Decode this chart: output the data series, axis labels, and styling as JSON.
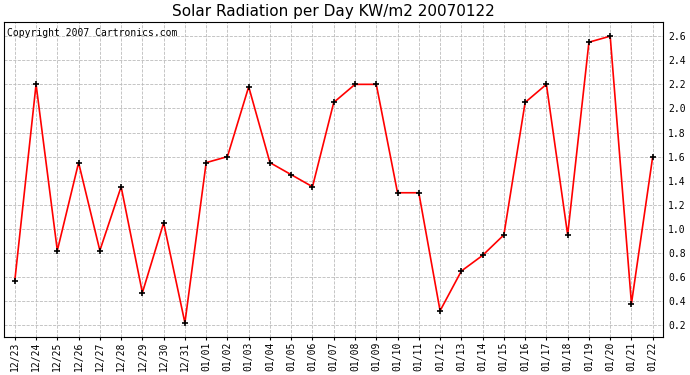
{
  "title": "Solar Radiation per Day KW/m2 20070122",
  "copyright": "Copyright 2007 Cartronics.com",
  "labels": [
    "12/23",
    "12/24",
    "12/25",
    "12/26",
    "12/27",
    "12/28",
    "12/29",
    "12/30",
    "12/31",
    "01/01",
    "01/02",
    "01/03",
    "01/04",
    "01/05",
    "01/06",
    "01/07",
    "01/08",
    "01/09",
    "01/10",
    "01/11",
    "01/12",
    "01/13",
    "01/14",
    "01/15",
    "01/16",
    "01/17",
    "01/18",
    "01/19",
    "01/20",
    "01/21",
    "01/22"
  ],
  "values": [
    0.57,
    2.2,
    0.82,
    1.55,
    0.82,
    1.35,
    0.47,
    1.05,
    0.22,
    1.55,
    1.6,
    2.18,
    1.55,
    1.45,
    1.35,
    2.05,
    2.2,
    2.2,
    1.3,
    1.3,
    0.32,
    0.65,
    0.78,
    0.95,
    2.05,
    2.2,
    0.95,
    2.55,
    2.6,
    0.38,
    1.6
  ],
  "line_color": "#ff0000",
  "marker_color": "#000000",
  "bg_color": "#ffffff",
  "grid_color": "#bbbbbb",
  "ylim": [
    0.1,
    2.72
  ],
  "yticks": [
    0.2,
    0.4,
    0.6,
    0.8,
    1.0,
    1.2,
    1.4,
    1.6,
    1.8,
    2.0,
    2.2,
    2.4,
    2.6
  ],
  "title_fontsize": 11,
  "tick_fontsize": 7,
  "copyright_fontsize": 7
}
